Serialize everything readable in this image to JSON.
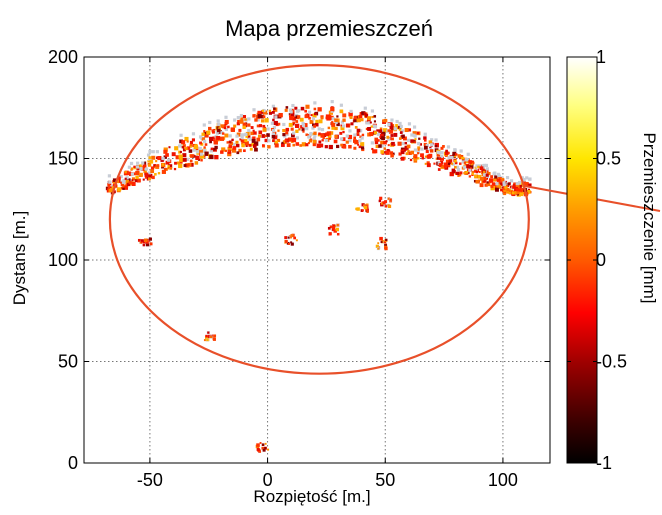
{
  "chart_data": {
    "type": "heatmap",
    "title": "Mapa przemieszczeń",
    "xlabel": "Rozpiętość [m.]",
    "ylabel": "Dystans [m.]",
    "xlim": [
      -78,
      120
    ],
    "ylim": [
      0,
      200
    ],
    "xticks": [
      "-50",
      "0",
      "50",
      "100"
    ],
    "xtick_values": [
      -50,
      0,
      50,
      100
    ],
    "yticks": [
      "0",
      "50",
      "100",
      "150",
      "200"
    ],
    "ytick_values": [
      0,
      50,
      100,
      150,
      200
    ],
    "grid": true,
    "colorbar": {
      "label": "Przemieszczenie [mm]",
      "range": [
        -1,
        1
      ],
      "ticks": [
        "-1",
        "-0.5",
        "0",
        "0.5",
        "1"
      ],
      "tick_values": [
        -1,
        -0.5,
        0,
        0.5,
        1
      ],
      "colormap": "hot"
    },
    "regions": [
      {
        "desc": "main arc band",
        "x_range": [
          -68,
          112
        ],
        "y_range": [
          135,
          182
        ],
        "density": "very high"
      },
      {
        "desc": "cluster",
        "x": -52,
        "y": 108
      },
      {
        "desc": "cluster",
        "x": 10,
        "y": 110
      },
      {
        "desc": "cluster",
        "x": 28,
        "y": 115
      },
      {
        "desc": "cluster",
        "x": 48,
        "y": 108
      },
      {
        "desc": "cluster",
        "x": 50,
        "y": 128
      },
      {
        "desc": "cluster",
        "x": 40,
        "y": 125
      },
      {
        "desc": "cluster",
        "x": -25,
        "y": 62
      },
      {
        "desc": "cluster",
        "x": -2,
        "y": 8
      }
    ],
    "annotation": {
      "type": "ellipse",
      "color": "#e8502a",
      "center": [
        22,
        120
      ],
      "radii": [
        89,
        76
      ],
      "pointer_to": "right edge"
    }
  }
}
